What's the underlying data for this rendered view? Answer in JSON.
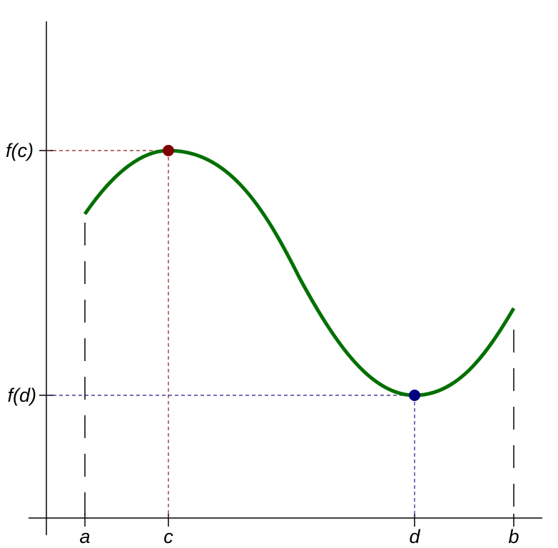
{
  "x_labels": [
    "a",
    "c",
    "d",
    "b"
  ],
  "y_labels": [
    "f(c)",
    "f(d)"
  ]
}
